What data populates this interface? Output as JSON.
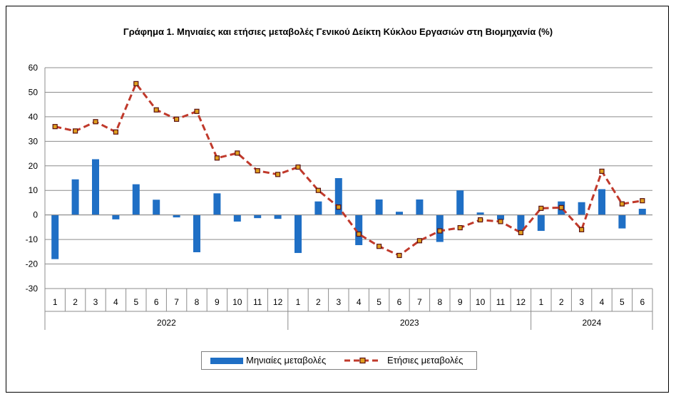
{
  "chart_data": {
    "type": "bar",
    "title": "Γράφημα 1. Μηνιαίες και ετήσιες μεταβολές  Γενικού Δείκτη Κύκλου Εργασιών στη Βιομηχανία  (%)",
    "xlabel": "",
    "ylabel": "",
    "ylim": [
      -30,
      60
    ],
    "yticks": [
      60,
      50,
      40,
      30,
      20,
      10,
      0,
      -10,
      -20,
      -30
    ],
    "grid": true,
    "legend_position": "bottom",
    "years": [
      {
        "label": "2022",
        "months": 12
      },
      {
        "label": "2023",
        "months": 12
      },
      {
        "label": "2024",
        "months": 6
      }
    ],
    "categories": [
      "1",
      "2",
      "3",
      "4",
      "5",
      "6",
      "7",
      "8",
      "9",
      "10",
      "11",
      "12",
      "1",
      "2",
      "3",
      "4",
      "5",
      "6",
      "7",
      "8",
      "9",
      "10",
      "11",
      "12",
      "1",
      "2",
      "3",
      "4",
      "5",
      "6"
    ],
    "series": [
      {
        "name": "Μηνιαίες μεταβολές",
        "type": "bar",
        "color": "#1f6fc5",
        "values": [
          -18.0,
          14.5,
          22.7,
          -1.8,
          12.5,
          6.2,
          -1.0,
          -15.2,
          8.8,
          -2.7,
          -1.3,
          -1.6,
          -15.5,
          5.5,
          15.0,
          -12.3,
          6.3,
          1.3,
          6.3,
          -11.0,
          10.0,
          1.0,
          -2.0,
          -6.5,
          -6.5,
          5.5,
          5.2,
          10.5,
          -5.5,
          2.5
        ]
      },
      {
        "name": "Ετήσιες μεταβολές",
        "type": "line",
        "color": "#c0392b",
        "marker_color": "#e0a020",
        "values": [
          36.0,
          34.2,
          38.0,
          33.8,
          53.5,
          42.8,
          39.0,
          42.2,
          23.2,
          25.2,
          18.0,
          16.5,
          19.5,
          10.0,
          3.2,
          -7.8,
          -12.8,
          -16.5,
          -10.5,
          -6.5,
          -5.2,
          -2.0,
          -2.7,
          -7.2,
          2.7,
          3.0,
          -6.0,
          17.8,
          4.5,
          5.8
        ]
      }
    ]
  }
}
